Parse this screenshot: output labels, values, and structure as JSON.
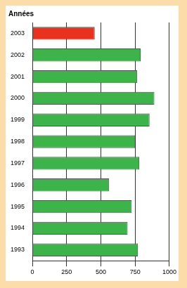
{
  "chart_data": {
    "type": "bar",
    "orientation": "horizontal",
    "title": "Années",
    "categories": [
      "2003",
      "2002",
      "2001",
      "2000",
      "1999",
      "1998",
      "1997",
      "1996",
      "1995",
      "1994",
      "1993"
    ],
    "values": [
      455,
      790,
      765,
      890,
      855,
      750,
      780,
      560,
      725,
      695,
      770
    ],
    "colors": [
      "#e8321e",
      "#3cb44a",
      "#3cb44a",
      "#3cb44a",
      "#3cb44a",
      "#3cb44a",
      "#3cb44a",
      "#3cb44a",
      "#3cb44a",
      "#3cb44a",
      "#3cb44a"
    ],
    "xlim": [
      0,
      1000
    ],
    "xticks": [
      0,
      250,
      500,
      750,
      1000
    ],
    "grid": true
  }
}
